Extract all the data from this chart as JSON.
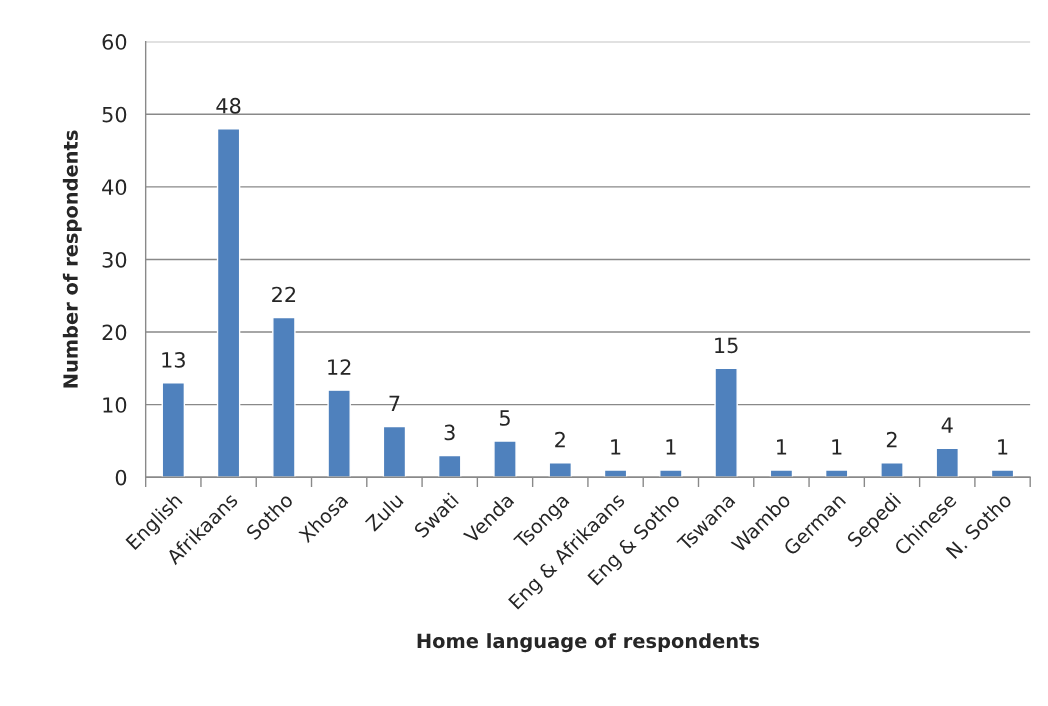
{
  "chart_data": {
    "type": "bar",
    "xlabel": "Home language of respondents",
    "ylabel": "Number of respondents",
    "categories": [
      "English",
      "Afrikaans",
      "Sotho",
      "Xhosa",
      "Zulu",
      "Swati",
      "Venda",
      "Tsonga",
      "Eng & Afrikaans",
      "Eng & Sotho",
      "Tswana",
      "Wambo",
      "German",
      "Sepedi",
      "Chinese",
      "N. Sotho"
    ],
    "values": [
      13,
      48,
      22,
      12,
      7,
      3,
      5,
      2,
      1,
      1,
      15,
      1,
      1,
      2,
      4,
      1
    ],
    "color": "#4f81bd",
    "ylim": [
      0,
      60
    ],
    "yticks": [
      0,
      10,
      20,
      30,
      40,
      50,
      60
    ],
    "grid": "y",
    "data_labels": true,
    "legend": false
  }
}
